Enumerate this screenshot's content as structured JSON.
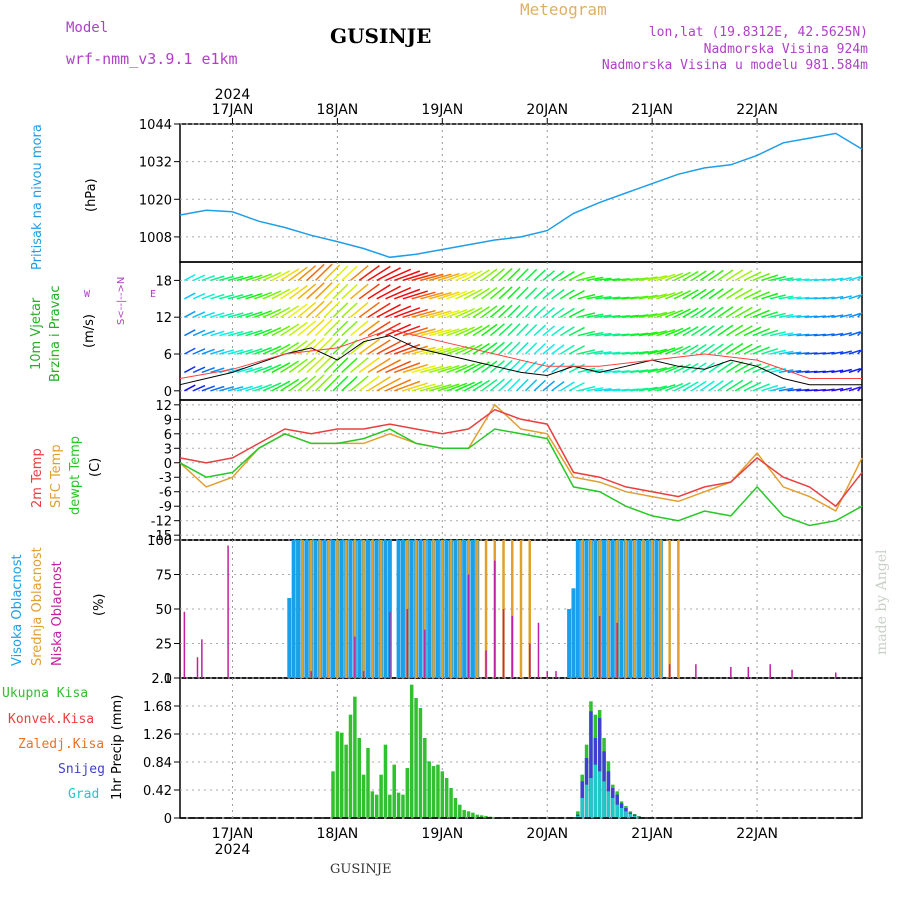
{
  "header": {
    "model_label": "Model",
    "model_name": "wrf-nmm_v3.9.1  e1km",
    "title": "GUSINJE",
    "meteogram": "Meteogram",
    "lonlat": "lon,lat (19.8312E, 42.5625N)",
    "elev": "Nadmorska Visina 924m",
    "elev_model": "Nadmorska Visina u modelu 981.584m",
    "footer": "GUSINJE",
    "watermark": "made by Angel"
  },
  "colors": {
    "pressure": "#1e9ee8",
    "temp2m": "#e84040",
    "sfc": "#e0a030",
    "dewpt": "#28c828",
    "high_cloud": "#1aa0e8",
    "mid_cloud": "#e0a030",
    "low_cloud": "#c020a0",
    "total_precip": "#30c030",
    "convective": "#e84040",
    "freezing": "#f07020",
    "snow": "#4040d0",
    "graupel": "#20c8c8",
    "wind_label": "#20b020",
    "compass": "#b040c8"
  },
  "time_axis": {
    "year": "2024",
    "day_labels": [
      "17JAN",
      "18JAN",
      "19JAN",
      "20JAN",
      "21JAN",
      "22JAN"
    ]
  },
  "labels": {
    "pressure": {
      "title": "Pritisak na nivou mora",
      "unit": "(hPa)"
    },
    "wind": {
      "title1": "10m Vjetar",
      "title2": "Brzina i Pravac",
      "unit": "(m/s)",
      "compass_w": "W",
      "compass_e": "E",
      "compass_ns": "S<--|-->N"
    },
    "temp": {
      "t2m": "2m Temp",
      "sfc": "SFC Temp",
      "dew": "dewpt Temp",
      "unit": "(C)"
    },
    "clouds": {
      "high": "Visoka Oblacnost",
      "mid": "Srednja Oblacnost",
      "low": "Niska Oblacnost",
      "unit": "(%)"
    },
    "precip": {
      "total": "Ukupna Kisa",
      "conv": "Konvek.Kisa",
      "freeze": "Zaledj.Kisa",
      "snow": "Snijeg",
      "grad": "Grad",
      "unit": "1hr Precip (mm)"
    }
  },
  "chart_data": [
    {
      "type": "line",
      "title": "Pritisak na nivou mora",
      "ylabel": "(hPa)",
      "x_unit": "hours since 2024-01-16 12:00 UTC",
      "ylim": [
        1000,
        1044
      ],
      "yticks": [
        1008,
        1020,
        1032,
        1044
      ],
      "series": [
        {
          "name": "Pritisak na nivou mora",
          "x": [
            0,
            6,
            12,
            18,
            24,
            30,
            36,
            42,
            48,
            54,
            60,
            66,
            72,
            78,
            84,
            90,
            96,
            102,
            108,
            114,
            120,
            126,
            132,
            138,
            144,
            150,
            156
          ],
          "values": [
            1015,
            1016.5,
            1016,
            1013,
            1011,
            1008.5,
            1006.5,
            1004.3,
            1001.5,
            1002.5,
            1004,
            1005.5,
            1007,
            1008,
            1010,
            1015.5,
            1019,
            1022,
            1025,
            1028,
            1030,
            1031,
            1034,
            1038,
            1039.5,
            1041,
            1036
          ]
        }
      ]
    },
    {
      "type": "line",
      "title": "10m Vjetar Brzina i Pravac",
      "ylabel": "(m/s)",
      "ylim": [
        -1.5,
        21
      ],
      "yticks": [
        0,
        6,
        12,
        18
      ],
      "series": [
        {
          "name": "mean",
          "x": [
            0,
            6,
            12,
            18,
            24,
            30,
            36,
            42,
            48,
            54,
            60,
            66,
            72,
            78,
            84,
            90,
            96,
            102,
            108,
            114,
            120,
            126,
            132,
            138,
            144,
            150,
            156
          ],
          "values": [
            1,
            2,
            3,
            4.5,
            6,
            7,
            5,
            8,
            9,
            7,
            6,
            5,
            4,
            3,
            2.5,
            4,
            3,
            4,
            5,
            4,
            3.5,
            5,
            4,
            2,
            1,
            1,
            1
          ]
        },
        {
          "name": "gust",
          "x": [
            0,
            12,
            24,
            36,
            48,
            60,
            72,
            84,
            96,
            108,
            120,
            132,
            144,
            156
          ],
          "values": [
            2,
            3.5,
            6,
            7,
            10,
            8,
            6,
            4,
            4,
            5,
            6,
            5,
            2,
            2
          ]
        }
      ]
    },
    {
      "type": "line",
      "title": "2m Temp / SFC Temp / dewpt Temp",
      "ylabel": "(C)",
      "ylim": [
        -16,
        13
      ],
      "yticks": [
        -15,
        -12,
        -9,
        -6,
        -3,
        0,
        3,
        6,
        9,
        12
      ],
      "series": [
        {
          "name": "2m Temp",
          "x": [
            0,
            6,
            12,
            18,
            24,
            30,
            36,
            42,
            48,
            54,
            60,
            66,
            72,
            78,
            84,
            90,
            96,
            102,
            108,
            114,
            120,
            126,
            132,
            138,
            144,
            150,
            156
          ],
          "values": [
            1,
            0,
            1,
            4,
            7,
            6,
            7,
            7,
            8,
            7,
            6,
            7,
            11,
            9,
            8,
            -2,
            -3,
            -5,
            -6,
            -7,
            -5,
            -4,
            1,
            -3,
            -5,
            -9,
            -2
          ]
        },
        {
          "name": "SFC Temp",
          "x": [
            0,
            6,
            12,
            18,
            24,
            30,
            36,
            42,
            48,
            54,
            60,
            66,
            72,
            78,
            84,
            90,
            96,
            102,
            108,
            114,
            120,
            126,
            132,
            138,
            144,
            150,
            156
          ],
          "values": [
            0,
            -5,
            -3,
            3,
            6,
            4,
            4,
            4,
            6,
            4,
            3,
            3,
            12,
            7,
            6,
            -3,
            -4,
            -6,
            -7,
            -8,
            -6,
            -4,
            2,
            -5,
            -7,
            -10,
            1
          ]
        },
        {
          "name": "dewpt Temp",
          "x": [
            0,
            6,
            12,
            18,
            24,
            30,
            36,
            42,
            48,
            54,
            60,
            66,
            72,
            78,
            84,
            90,
            96,
            102,
            108,
            114,
            120,
            126,
            132,
            138,
            144,
            150,
            156
          ],
          "values": [
            0,
            -3,
            -2,
            3,
            6,
            4,
            4,
            5,
            7,
            4,
            3,
            3,
            7,
            6,
            5,
            -5,
            -6,
            -9,
            -11,
            -12,
            -10,
            -11,
            -5,
            -11,
            -13,
            -12,
            -9
          ]
        }
      ]
    },
    {
      "type": "bar",
      "title": "Visoka / Srednja / Niska Oblacnost",
      "ylabel": "(%)",
      "ylim": [
        0,
        100
      ],
      "yticks": [
        0,
        25,
        50,
        75,
        100
      ],
      "series": [
        {
          "name": "Visoka Oblacnost",
          "x": [
            25,
            26,
            27,
            28,
            29,
            30,
            31,
            32,
            33,
            34,
            35,
            36,
            37,
            38,
            39,
            40,
            41,
            42,
            43,
            44,
            45,
            46,
            47,
            48,
            50,
            51,
            52,
            53,
            54,
            55,
            56,
            57,
            58,
            59,
            60,
            61,
            62,
            63,
            64,
            65,
            66,
            67,
            68,
            89,
            90,
            91,
            92,
            93,
            94,
            95,
            96,
            97,
            98,
            99,
            100,
            101,
            102,
            103,
            104,
            105,
            106,
            107,
            108,
            109,
            110
          ],
          "values": [
            58,
            100,
            100,
            100,
            100,
            100,
            100,
            100,
            100,
            100,
            100,
            100,
            100,
            100,
            100,
            100,
            100,
            100,
            100,
            100,
            100,
            100,
            100,
            100,
            100,
            100,
            100,
            100,
            100,
            100,
            100,
            100,
            100,
            100,
            100,
            100,
            100,
            100,
            100,
            100,
            100,
            100,
            100,
            50,
            65,
            100,
            100,
            100,
            100,
            100,
            100,
            100,
            100,
            100,
            100,
            100,
            100,
            100,
            100,
            100,
            100,
            100,
            100,
            100,
            100
          ]
        },
        {
          "name": "Srednja Oblacnost",
          "x": [
            28,
            30,
            32,
            34,
            36,
            38,
            40,
            42,
            44,
            46,
            52,
            54,
            56,
            58,
            60,
            62,
            64,
            66,
            68,
            70,
            72,
            74,
            76,
            78,
            80,
            92,
            94,
            96,
            98,
            100,
            102,
            104,
            106,
            108,
            110,
            112,
            114
          ],
          "values": [
            100,
            100,
            100,
            100,
            100,
            100,
            100,
            100,
            100,
            100,
            100,
            100,
            100,
            100,
            100,
            100,
            100,
            100,
            100,
            100,
            100,
            100,
            100,
            100,
            100,
            100,
            100,
            100,
            100,
            100,
            100,
            100,
            100,
            100,
            100,
            100,
            100
          ]
        },
        {
          "name": "Niska Oblacnost",
          "x": [
            1,
            4,
            5,
            11,
            30,
            40,
            42,
            48,
            52,
            56,
            66,
            70,
            72,
            74,
            76,
            80,
            82,
            84,
            86,
            96,
            100,
            112,
            118,
            126,
            130,
            135,
            140,
            150
          ],
          "values": [
            48,
            15,
            28,
            96,
            5,
            30,
            5,
            48,
            50,
            35,
            75,
            20,
            85,
            50,
            45,
            25,
            40,
            5,
            5,
            45,
            40,
            10,
            10,
            8,
            8,
            10,
            6,
            4
          ]
        }
      ]
    },
    {
      "type": "bar",
      "title": "1hr Precip",
      "ylabel": "1hr Precip (mm)",
      "ylim": [
        0,
        2.1
      ],
      "yticks": [
        0,
        0.42,
        0.84,
        1.26,
        1.68,
        2.1
      ],
      "series": [
        {
          "name": "Ukupna Kisa",
          "x": [
            35,
            36,
            37,
            38,
            39,
            40,
            41,
            42,
            43,
            44,
            45,
            46,
            47,
            48,
            49,
            50,
            51,
            52,
            53,
            54,
            55,
            56,
            57,
            58,
            59,
            60,
            61,
            62,
            63,
            64,
            65,
            66,
            67,
            68,
            69,
            70,
            71,
            72,
            91,
            92,
            93,
            94,
            95,
            96,
            97,
            98,
            99,
            100,
            101,
            102,
            103,
            104,
            105
          ],
          "values": [
            0.7,
            1.3,
            1.28,
            1.1,
            1.55,
            1.82,
            1.2,
            0.65,
            1.05,
            0.4,
            0.35,
            0.65,
            1.1,
            0.35,
            0.8,
            0.38,
            0.35,
            0.75,
            2.0,
            1.8,
            1.65,
            1.2,
            0.85,
            0.78,
            0.8,
            0.7,
            0.6,
            0.45,
            0.3,
            0.2,
            0.12,
            0.1,
            0.08,
            0.05,
            0.04,
            0.03,
            0.02,
            0.01,
            0.1,
            0.65,
            1.1,
            1.75,
            1.55,
            1.62,
            1.2,
            0.85,
            0.5,
            0.4,
            0.25,
            0.18,
            0.1,
            0.06,
            0.03
          ]
        },
        {
          "name": "Snijeg",
          "x": [
            91,
            92,
            93,
            94,
            95,
            96,
            97,
            98,
            99,
            100,
            101,
            102,
            103,
            104,
            105
          ],
          "values": [
            0.05,
            0.55,
            0.9,
            1.6,
            1.2,
            1.5,
            1.0,
            0.7,
            0.45,
            0.35,
            0.22,
            0.15,
            0.08,
            0.05,
            0.02
          ]
        },
        {
          "name": "Grad",
          "x": [
            91,
            92,
            93,
            94,
            95,
            96,
            97,
            98,
            99,
            100,
            101,
            102,
            103,
            104,
            105
          ],
          "values": [
            0.03,
            0.3,
            0.5,
            0.6,
            0.8,
            0.7,
            0.55,
            0.4,
            0.3,
            0.2,
            0.15,
            0.1,
            0.06,
            0.03,
            0.01
          ]
        }
      ]
    }
  ]
}
